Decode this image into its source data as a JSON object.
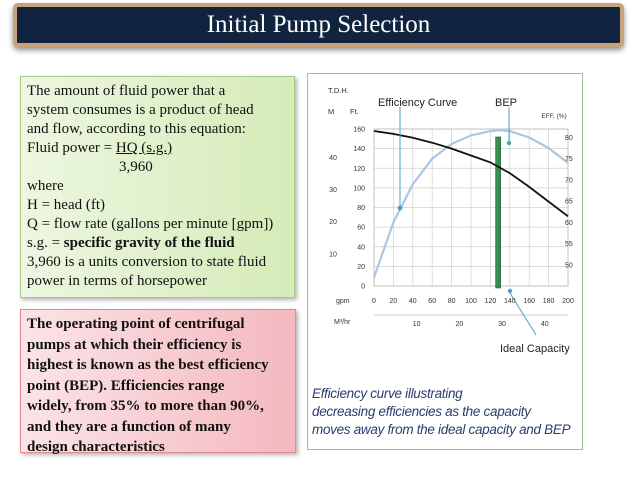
{
  "slide": {
    "title": "Initial Pump Selection"
  },
  "green_box": {
    "lines": [
      "The amount of fluid power that a",
      "system consumes is a product of head",
      "and flow, according to this equation:"
    ],
    "formula_prefix": "Fluid power = ",
    "formula_numerator": "HQ (s.g.)",
    "formula_denominator": "3,960",
    "where": "where",
    "h_def": "H = head (ft)",
    "q_def": "Q = flow rate (gallons per minute [gpm])",
    "sg_prefix": "s.g. = ",
    "sg_bold": "specific gravity of the fluid",
    "conv_lines": [
      "3,960 is a units conversion to state fluid",
      "power in terms of horsepower"
    ]
  },
  "red_box": {
    "lines": [
      "The operating point of centrifugal",
      "pumps at which their efficiency is",
      "highest is known as the best efficiency",
      "point (BEP). Efficiencies range",
      "widely, from 35% to more than 90%,",
      "and they are a function of many",
      "design characteristics"
    ]
  },
  "figure": {
    "caption_lines": [
      "Efficiency curve illustrating",
      "decreasing efficiencies as the capacity",
      "moves away from the ideal capacity and BEP"
    ]
  },
  "chart_data": {
    "type": "line",
    "labels": {
      "tdh": "T.D.H.",
      "m": "M",
      "ft": "Ft.",
      "eff": "EFF, (%)",
      "gpm": "gpm",
      "m3hr": "M³/hr",
      "efficiency_curve": "Efficiency Curve",
      "bep": "BEP",
      "ideal_capacity": "Ideal Capacity"
    },
    "x_gpm_ticks": [
      "0",
      "20",
      "40",
      "60",
      "80",
      "100",
      "120",
      "140",
      "160",
      "180",
      "200"
    ],
    "m3hr_ticks": [
      {
        "gpm": 44,
        "label": "10"
      },
      {
        "gpm": 88,
        "label": "20"
      },
      {
        "gpm": 132,
        "label": "30"
      },
      {
        "gpm": 176,
        "label": "40"
      }
    ],
    "ft_ticks": [
      "0",
      "20",
      "40",
      "60",
      "80",
      "100",
      "120",
      "140",
      "160"
    ],
    "m_ticks": [
      {
        "ft": 32.8,
        "label": "10"
      },
      {
        "ft": 65.6,
        "label": "20"
      },
      {
        "ft": 98.4,
        "label": "30"
      },
      {
        "ft": 131.2,
        "label": "40"
      }
    ],
    "eff_ticks": [
      "50",
      "55",
      "60",
      "65",
      "70",
      "75",
      "80"
    ],
    "xlim": [
      0,
      200
    ],
    "ylim_ft": [
      0,
      160
    ],
    "eff_range": [
      45,
      82
    ],
    "series": [
      {
        "type": "head",
        "x": [
          0,
          20,
          40,
          60,
          80,
          100,
          120,
          140,
          160,
          180,
          200
        ],
        "y_ft": [
          158,
          155,
          151,
          146,
          140,
          133,
          126,
          115,
          101,
          86,
          71
        ]
      },
      {
        "type": "efficiency",
        "x": [
          0,
          20,
          40,
          60,
          80,
          100,
          120,
          130,
          140,
          160,
          180,
          200
        ],
        "y_eff": [
          47,
          60,
          69,
          75,
          78.5,
          80.5,
          81.5,
          81.7,
          81.5,
          80,
          77.5,
          74
        ]
      }
    ],
    "bep_gpm": 128,
    "grid": true,
    "colors": {
      "head_curve": "#111111",
      "efficiency_curve": "#a9c7e6",
      "bep_bar": "#3a8c52",
      "annotation": "#4aa3c7"
    }
  }
}
